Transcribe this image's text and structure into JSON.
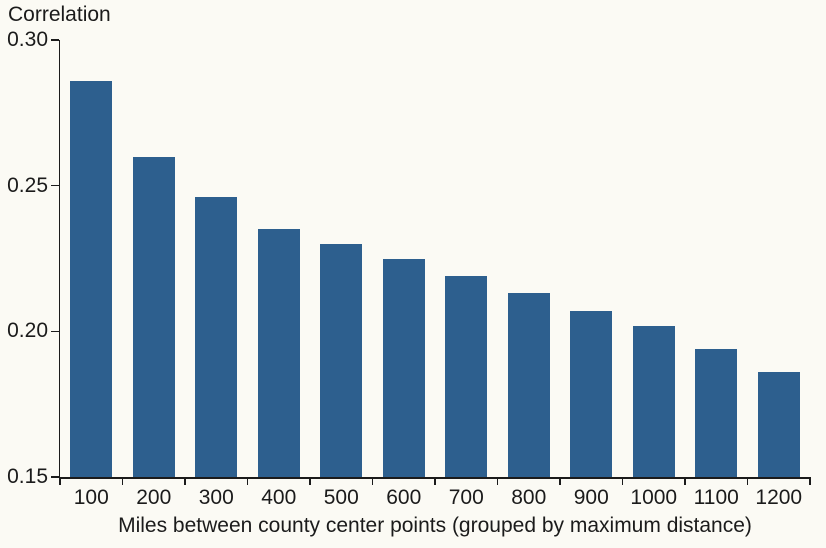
{
  "chart_data": {
    "type": "bar",
    "title": "",
    "ylabel": "Correlation",
    "xlabel": "Miles between county center points (grouped by maximum distance)",
    "categories": [
      "100",
      "200",
      "300",
      "400",
      "500",
      "600",
      "700",
      "800",
      "900",
      "1000",
      "1100",
      "1200"
    ],
    "values": [
      0.286,
      0.26,
      0.246,
      0.235,
      0.23,
      0.225,
      0.219,
      0.213,
      0.207,
      0.202,
      0.194,
      0.186
    ],
    "ylim": [
      0.15,
      0.3
    ],
    "yticks": [
      0.15,
      0.2,
      0.25,
      0.3
    ],
    "ytick_labels": [
      "0.15",
      "0.20",
      "0.25",
      "0.30"
    ],
    "grid": false,
    "legend_position": "none",
    "colors": {
      "bar": "#2d5f8e",
      "background": "#fbfaf4",
      "text": "#1b1b1b",
      "axis": "#1b1b1b"
    }
  }
}
